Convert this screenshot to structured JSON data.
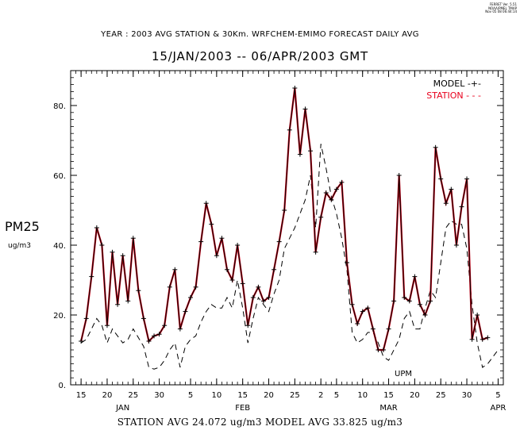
{
  "stamp": [
    "FERRET Ver. 5.51",
    "NOAA/PMEL TMAP",
    "Nov 05 08 06:44:14"
  ],
  "title": "YEAR : 2003 AVG STATION & 30Km. WRFCHEM-EMIMO  FORECAST DAILY AVG",
  "subtitle": "15/JAN/2003   -- 06/APR/2003 GMT",
  "ylabel": "PM25",
  "yunit": "ug/m3",
  "footer": "STATION AVG 24.072 ug/m3  MODEL AVG 33.825 ug/m3",
  "watermark": "UPM",
  "legend": {
    "model": "MODEL -+-",
    "station": "STATION - - -"
  },
  "colors": {
    "station_legend": "#e8001c",
    "line": "#000000"
  },
  "chart_data": {
    "type": "line",
    "x_start": "2003-01-15",
    "xlim": [
      "2003-01-13",
      "2003-04-06"
    ],
    "ylim": [
      0,
      90
    ],
    "yticks": [
      {
        "value": 0,
        "label": "0."
      },
      {
        "value": 20,
        "label": "20."
      },
      {
        "value": 40,
        "label": "40."
      },
      {
        "value": 60,
        "label": "60."
      },
      {
        "value": 80,
        "label": "80."
      }
    ],
    "xticks": [
      {
        "date": "2003-01-15",
        "label": "15"
      },
      {
        "date": "2003-01-20",
        "label": "20"
      },
      {
        "date": "2003-01-25",
        "label": "25"
      },
      {
        "date": "2003-01-30",
        "label": "30"
      },
      {
        "date": "2003-02-05",
        "label": "5"
      },
      {
        "date": "2003-02-10",
        "label": "10"
      },
      {
        "date": "2003-02-15",
        "label": "15"
      },
      {
        "date": "2003-02-20",
        "label": "20"
      },
      {
        "date": "2003-02-25",
        "label": "25"
      },
      {
        "date": "2003-03-02",
        "label": "2"
      },
      {
        "date": "2003-03-05",
        "label": "5"
      },
      {
        "date": "2003-03-10",
        "label": "10"
      },
      {
        "date": "2003-03-15",
        "label": "15"
      },
      {
        "date": "2003-03-20",
        "label": "20"
      },
      {
        "date": "2003-03-25",
        "label": "25"
      },
      {
        "date": "2003-03-30",
        "label": "30"
      },
      {
        "date": "2003-04-05",
        "label": "5"
      }
    ],
    "month_labels": [
      {
        "date": "2003-01-23",
        "label": "JAN"
      },
      {
        "date": "2003-02-15",
        "label": "FEB"
      },
      {
        "date": "2003-03-15",
        "label": "MAR"
      },
      {
        "date": "2003-04-05",
        "label": "APR"
      }
    ],
    "series": [
      {
        "name": "MODEL",
        "style": "solid-plus",
        "values": [
          12.5,
          19,
          31,
          45,
          40,
          17,
          38,
          23,
          37,
          24,
          42,
          27,
          19,
          12.5,
          14,
          14.5,
          17,
          28,
          33,
          16,
          21,
          25,
          28,
          41,
          52,
          46,
          37,
          42,
          33,
          30,
          40,
          29,
          17,
          25,
          28,
          24,
          25,
          33,
          41,
          50,
          73,
          85,
          66,
          79,
          67,
          38,
          48,
          55,
          53,
          56,
          58,
          35,
          23,
          17.5,
          21,
          22,
          16,
          10,
          10,
          16,
          24,
          60,
          25,
          24,
          31,
          23,
          20,
          24,
          68,
          59,
          52,
          56,
          40,
          51,
          59,
          13,
          20,
          13,
          13.5
        ],
        "start": "2003-01-15"
      },
      {
        "name": "STATION",
        "style": "dashed",
        "values": [
          12,
          13,
          16,
          19,
          17,
          12,
          16,
          14,
          12,
          13,
          16,
          13.5,
          11,
          5,
          4.5,
          5,
          7,
          10,
          12,
          5,
          11,
          13,
          14,
          18,
          21,
          23,
          22,
          22,
          25,
          22,
          30,
          22,
          12,
          19,
          25,
          23,
          21,
          26,
          30,
          39,
          42,
          45,
          49,
          53,
          60,
          45,
          69,
          62,
          54,
          49,
          42,
          33,
          15,
          12,
          13,
          15,
          15,
          12,
          8,
          7,
          10,
          13,
          19,
          21,
          16,
          16,
          22,
          27,
          25,
          35,
          45,
          47,
          46,
          46,
          39,
          23,
          12,
          5,
          6,
          8,
          10
        ],
        "start": "2003-01-15"
      }
    ]
  }
}
